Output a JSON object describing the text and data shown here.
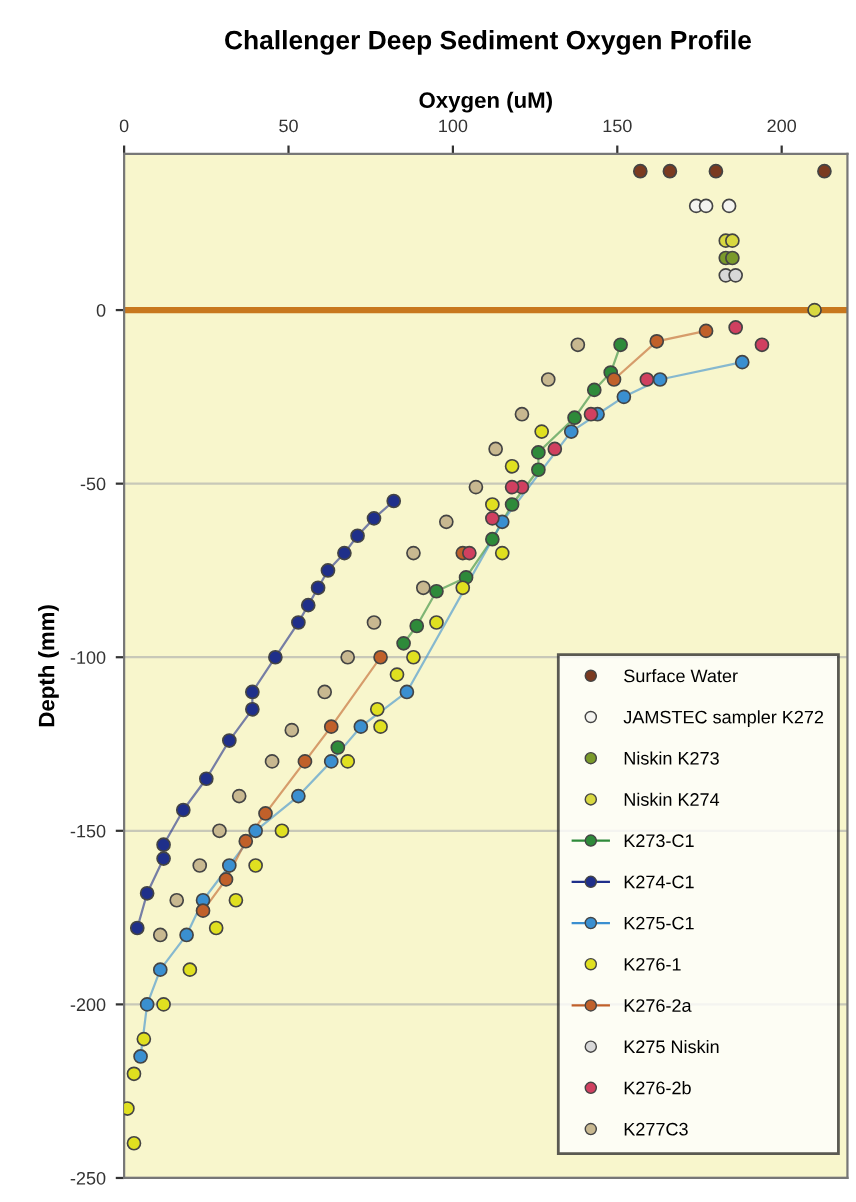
{
  "chart_data": {
    "type": "scatter",
    "title": "Challenger Deep Sediment Oxygen Profile",
    "xlabel": "Oxygen (uM)",
    "ylabel": "Depth (mm)",
    "xlim": [
      0,
      220
    ],
    "xticks": [
      0,
      50,
      100,
      150,
      200
    ],
    "ylim": [
      -250,
      45
    ],
    "yticks": [
      0,
      -50,
      -100,
      -150,
      -200,
      -250
    ],
    "grid": "y",
    "legend": "bottom right",
    "marker": "circle",
    "ref_lines": [
      {
        "axis": "y",
        "value": 0,
        "color": "#c8781e"
      }
    ],
    "series": [
      {
        "name": "Surface Water",
        "color": "#7a3a20",
        "x": [
          157,
          166,
          180,
          213
        ],
        "values": [
          40,
          40,
          40,
          40
        ]
      },
      {
        "name": "JAMSTEC sampler K272",
        "color": "#f4f4f0",
        "x": [
          174,
          177,
          184
        ],
        "values": [
          30,
          30,
          30
        ]
      },
      {
        "name": "Niskin K273",
        "color": "#7a9a2a",
        "x": [
          183,
          185
        ],
        "values": [
          15,
          15
        ]
      },
      {
        "name": "Niskin K274",
        "color": "#d8d840",
        "x": [
          183,
          185,
          210
        ],
        "values": [
          20,
          20,
          0
        ]
      },
      {
        "name": "K273-C1",
        "color": "#2e8a3a",
        "type": "line",
        "line_style": "solid",
        "x": [
          151,
          148,
          143,
          137,
          126,
          126,
          118,
          112,
          104,
          95,
          89,
          85,
          82,
          65
        ],
        "values": [
          -10,
          -18,
          -23,
          -31,
          -41,
          -46,
          -56,
          -66,
          -77,
          -81,
          -91,
          -96,
          null,
          -126
        ]
      },
      {
        "name": "K274-C1",
        "color": "#1f2f8a",
        "type": "line",
        "line_style": "solid",
        "x": [
          82,
          76,
          71,
          67,
          62,
          59,
          56,
          53,
          46,
          39,
          39,
          32,
          25,
          18,
          12,
          12,
          7,
          4
        ],
        "values": [
          -55,
          -60,
          -65,
          -70,
          -75,
          -80,
          -85,
          -90,
          -100,
          -110,
          -115,
          -124,
          -135,
          -144,
          -154,
          -158,
          -168,
          -178
        ]
      },
      {
        "name": "K275-C1",
        "color": "#3a8fd0",
        "type": "line",
        "line_style": "solid",
        "x": [
          188,
          163,
          152,
          144,
          136,
          115,
          86,
          72,
          63,
          53,
          40,
          32,
          24,
          19,
          11,
          7,
          5
        ],
        "values": [
          -15,
          -20,
          -25,
          -30,
          -35,
          -61,
          -110,
          -120,
          -130,
          -140,
          -150,
          -160,
          -170,
          -180,
          -190,
          -200,
          -215
        ]
      },
      {
        "name": "K276-1",
        "color": "#e0e020",
        "x": [
          127,
          118,
          112,
          115,
          103,
          95,
          88,
          83,
          77,
          78,
          68,
          48,
          40,
          34,
          28,
          20,
          12,
          6,
          3,
          1,
          3
        ],
        "values": [
          -35,
          -45,
          -56,
          -70,
          -80,
          -90,
          -100,
          -105,
          -115,
          -120,
          -130,
          -150,
          -160,
          -170,
          -178,
          -190,
          -200,
          -210,
          -220,
          -230,
          -240
        ]
      },
      {
        "name": "K276-2a",
        "color": "#c0602a",
        "type": "line",
        "line_style": "solid",
        "x": [
          177,
          162,
          149,
          142,
          103,
          91,
          78,
          63,
          55,
          43,
          37,
          31,
          24
        ],
        "values": [
          -6,
          -9,
          -20,
          null,
          -70,
          null,
          -100,
          -120,
          -130,
          -145,
          -153,
          -164,
          -173
        ]
      },
      {
        "name": "K275 Niskin",
        "color": "#d8d8d8",
        "x": [
          183,
          186
        ],
        "values": [
          10,
          10
        ]
      },
      {
        "name": "K276-2b",
        "color": "#d04060",
        "x": [
          186,
          194,
          159,
          142,
          131,
          121,
          118,
          112,
          105
        ],
        "values": [
          -5,
          -10,
          -20,
          -30,
          -40,
          -51,
          -51,
          -60,
          -70
        ]
      },
      {
        "name": "K277C3",
        "color": "#c8b890",
        "x": [
          138,
          129,
          121,
          114,
          113,
          107,
          98,
          88,
          91,
          76,
          68,
          61,
          51,
          45,
          35,
          29,
          23,
          16,
          11
        ],
        "values": [
          -10,
          -20,
          -30,
          null,
          -40,
          -51,
          -61,
          -70,
          -80,
          -90,
          -100,
          -110,
          -121,
          -130,
          -140,
          -150,
          -160,
          -170,
          -180
        ]
      }
    ]
  }
}
